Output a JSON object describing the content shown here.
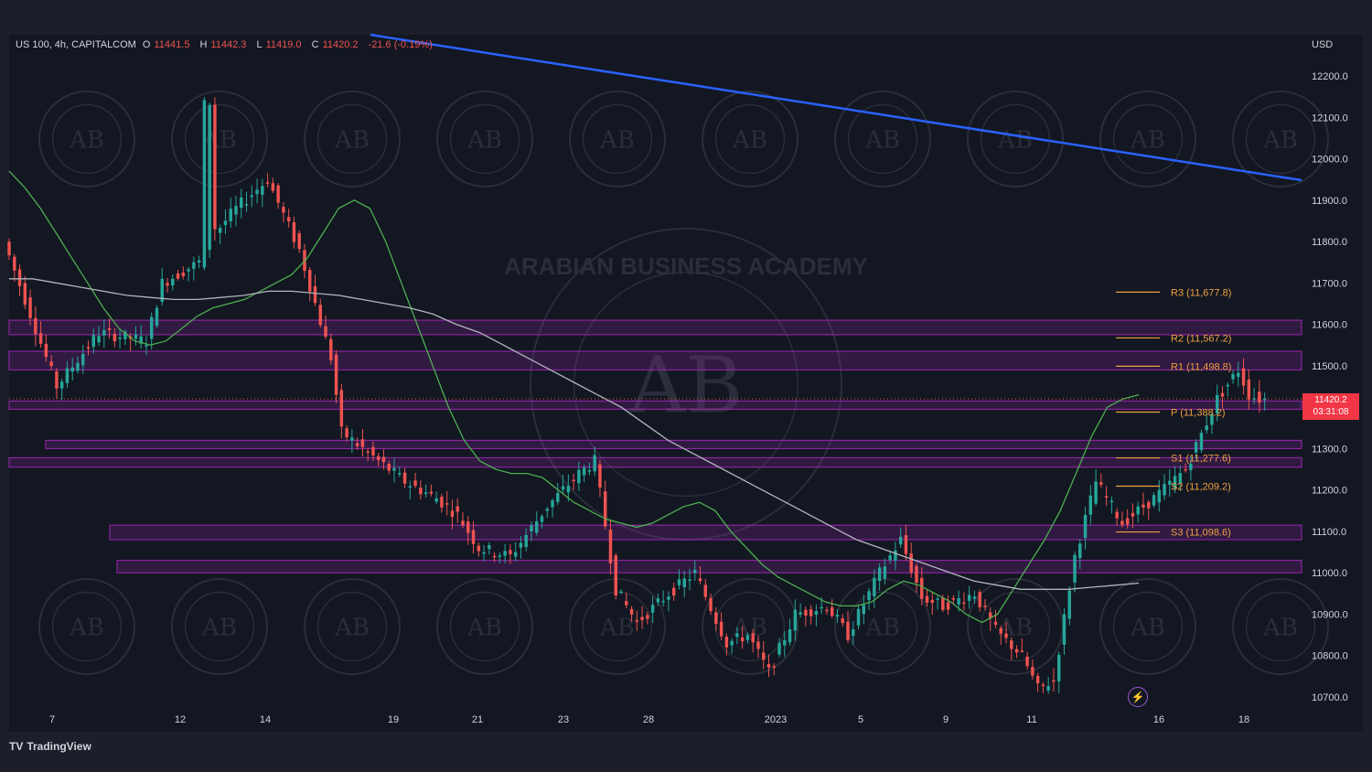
{
  "header": {
    "symbol": "US 100, 4h, CAPITALCOM",
    "open_label": "O",
    "open": "11441.5",
    "high_label": "H",
    "high": "11442.3",
    "low_label": "L",
    "low": "11419.0",
    "close_label": "C",
    "close": "11420.2",
    "change": "-21.6 (-0.19%)"
  },
  "currency": "USD",
  "current_price": {
    "value": "11420.2",
    "countdown": "03:31:08"
  },
  "branding": {
    "logo_text": "TradingView",
    "watermark_text": "ARABIAN BUSINESS ACADEMY",
    "watermark_initials": "AB"
  },
  "colors": {
    "up": "#26a69a",
    "down": "#ef5350",
    "zone": "#9c27b0",
    "trendline": "#2962ff",
    "ma_fast": "#4caf50",
    "ma_slow": "#b2b5be",
    "pivot": "#f0a040"
  },
  "chart_data": {
    "type": "candlestick",
    "ylim": [
      10680,
      12290
    ],
    "y_ticks": [
      12200,
      12100,
      12000,
      11900,
      11800,
      11700,
      11600,
      11500,
      11400,
      11300,
      11200,
      11100,
      11000,
      10900,
      10800,
      10700
    ],
    "y_tick_labels": [
      "12200.0",
      "12100.0",
      "12000.0",
      "11900.0",
      "11800.0",
      "11700.0",
      "11600.0",
      "11500.0",
      "11400.0",
      "11300.0",
      "11200.0",
      "11100.0",
      "11000.0",
      "10900.0",
      "10800.0",
      "10700.0"
    ],
    "x_ticks": [
      "7",
      "12",
      "14",
      "19",
      "21",
      "23",
      "28",
      "2023",
      "5",
      "9",
      "11",
      "16",
      "18"
    ],
    "x_tick_index": [
      7,
      39,
      55,
      79,
      95,
      111,
      127,
      143,
      159,
      175,
      191,
      215,
      231
    ],
    "candle_count": 212,
    "candles_ohlc_approx": [
      [
        11800,
        11830,
        11770,
        11790
      ],
      [
        11780,
        11810,
        11760,
        11795
      ],
      [
        11795,
        11820,
        11770,
        11780
      ],
      [
        11780,
        11790,
        11650,
        11670
      ],
      [
        11670,
        11690,
        11560,
        11580
      ],
      [
        11580,
        11600,
        11510,
        11530
      ],
      [
        11530,
        11580,
        11500,
        11560
      ],
      [
        11560,
        11580,
        11500,
        11520
      ],
      [
        11520,
        11550,
        11440,
        11460
      ],
      [
        11460,
        11510,
        11420,
        11490
      ],
      [
        11490,
        11520,
        11450,
        11470
      ],
      [
        11470,
        11500,
        11440,
        11480
      ],
      [
        11480,
        11540,
        11460,
        11520
      ],
      [
        11520,
        11600,
        11500,
        11580
      ],
      [
        11580,
        11660,
        11560,
        11640
      ],
      [
        11640,
        11680,
        11610,
        11660
      ],
      [
        11660,
        11700,
        11640,
        11690
      ],
      [
        11690,
        11710,
        11560,
        11600
      ],
      [
        11600,
        11650,
        11520,
        11560
      ],
      [
        11560,
        11630,
        11540,
        11610
      ],
      [
        11610,
        11640,
        11480,
        11520
      ],
      [
        11520,
        11590,
        11500,
        11570
      ],
      [
        11570,
        11620,
        11550,
        11600
      ],
      [
        11600,
        11660,
        11560,
        11640
      ],
      [
        11640,
        11720,
        11620,
        11700
      ],
      [
        11700,
        11760,
        11680,
        11740
      ],
      [
        11740,
        11800,
        11700,
        11780
      ],
      [
        11780,
        12150,
        11760,
        12130
      ],
      [
        12130,
        12140,
        11800,
        11830
      ],
      [
        11830,
        11900,
        11810,
        11880
      ],
      [
        11880,
        11910,
        11850,
        11870
      ],
      [
        11870,
        11930,
        11850,
        11910
      ],
      [
        11910,
        11950,
        11880,
        11930
      ],
      [
        11930,
        11940,
        11780,
        11800
      ],
      [
        11800,
        11820,
        11700,
        11720
      ],
      [
        11720,
        11740,
        11660,
        11680
      ],
      [
        11680,
        11690,
        11520,
        11540
      ],
      [
        11540,
        11560,
        11380,
        11400
      ],
      [
        11400,
        11420,
        11300,
        11320
      ],
      [
        11320,
        11380,
        11300,
        11360
      ],
      [
        11360,
        11380,
        11200,
        11240
      ],
      [
        11240,
        11300,
        11220,
        11280
      ],
      [
        11280,
        11300,
        11180,
        11200
      ]
    ],
    "zones": [
      {
        "low": 11575,
        "high": 11610
      },
      {
        "low": 11490,
        "high": 11535
      },
      {
        "low": 11395,
        "high": 11415
      },
      {
        "low": 11300,
        "high": 11320
      },
      {
        "low": 11255,
        "high": 11278
      },
      {
        "low": 11080,
        "high": 11115
      },
      {
        "low": 11000,
        "high": 11030
      }
    ],
    "trendline": {
      "start_index": 51,
      "start_value": 12300,
      "end_index": 238,
      "end_value": 11950
    },
    "pivots": [
      {
        "label": "R3 (11,677.8)",
        "value": 11677.8
      },
      {
        "label": "R2 (11,567.2)",
        "value": 11567.2
      },
      {
        "label": "R1 (11,498.8)",
        "value": 11498.8
      },
      {
        "label": "P (11,388.2)",
        "value": 11388.2
      },
      {
        "label": "S1 (11,277.6)",
        "value": 11277.6
      },
      {
        "label": "S2 (11,209.2)",
        "value": 11209.2
      },
      {
        "label": "S3 (11,098.6)",
        "value": 11098.6
      }
    ],
    "ma_fast_approx": [
      11970,
      11930,
      11880,
      11820,
      11760,
      11700,
      11640,
      11590,
      11560,
      11550,
      11560,
      11590,
      11620,
      11640,
      11650,
      11660,
      11680,
      11700,
      11720,
      11760,
      11820,
      11880,
      11900,
      11880,
      11800,
      11700,
      11600,
      11500,
      11400,
      11320,
      11270,
      11250,
      11240,
      11240,
      11230,
      11200,
      11170,
      11150,
      11130,
      11120,
      11110,
      11120,
      11140,
      11160,
      11170,
      11150,
      11100,
      11060,
      11020,
      10990,
      10970,
      10950,
      10930,
      10920,
      10920,
      10930,
      10960,
      10980,
      10970,
      10950,
      10930,
      10900,
      10880,
      10900,
      10960,
      11020,
      11080,
      11150,
      11240,
      11330,
      11400,
      11420,
      11430
    ],
    "ma_slow_approx": [
      11710,
      11710,
      11700,
      11690,
      11680,
      11670,
      11665,
      11660,
      11660,
      11665,
      11670,
      11680,
      11680,
      11675,
      11670,
      11660,
      11650,
      11640,
      11625,
      11600,
      11580,
      11550,
      11520,
      11490,
      11460,
      11430,
      11400,
      11360,
      11320,
      11290,
      11260,
      11230,
      11200,
      11170,
      11140,
      11110,
      11080,
      11060,
      11040,
      11020,
      11000,
      10980,
      10970,
      10960,
      10960,
      10960,
      10965,
      10970,
      10975
    ]
  }
}
